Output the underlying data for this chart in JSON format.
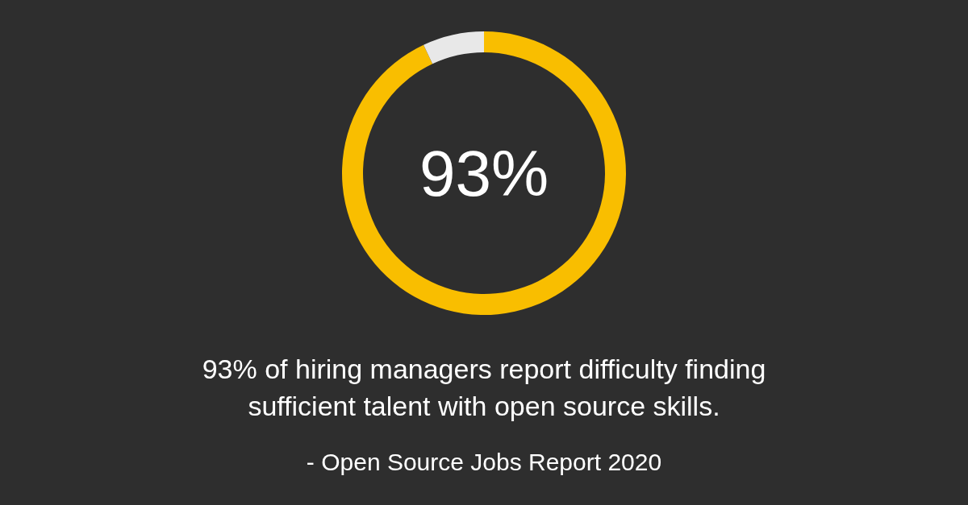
{
  "chart_data": {
    "type": "donut",
    "categories": [
      null,
      null
    ],
    "values": [
      93,
      7
    ],
    "colors": [
      "#f9be00",
      "#e8e8e8"
    ],
    "value_labels": [
      "93%",
      null
    ],
    "annotations": [
      "93% of hiring managers report difficulty finding sufficient talent with open source skills.",
      "- Open Source Jobs Report 2020"
    ]
  }
}
